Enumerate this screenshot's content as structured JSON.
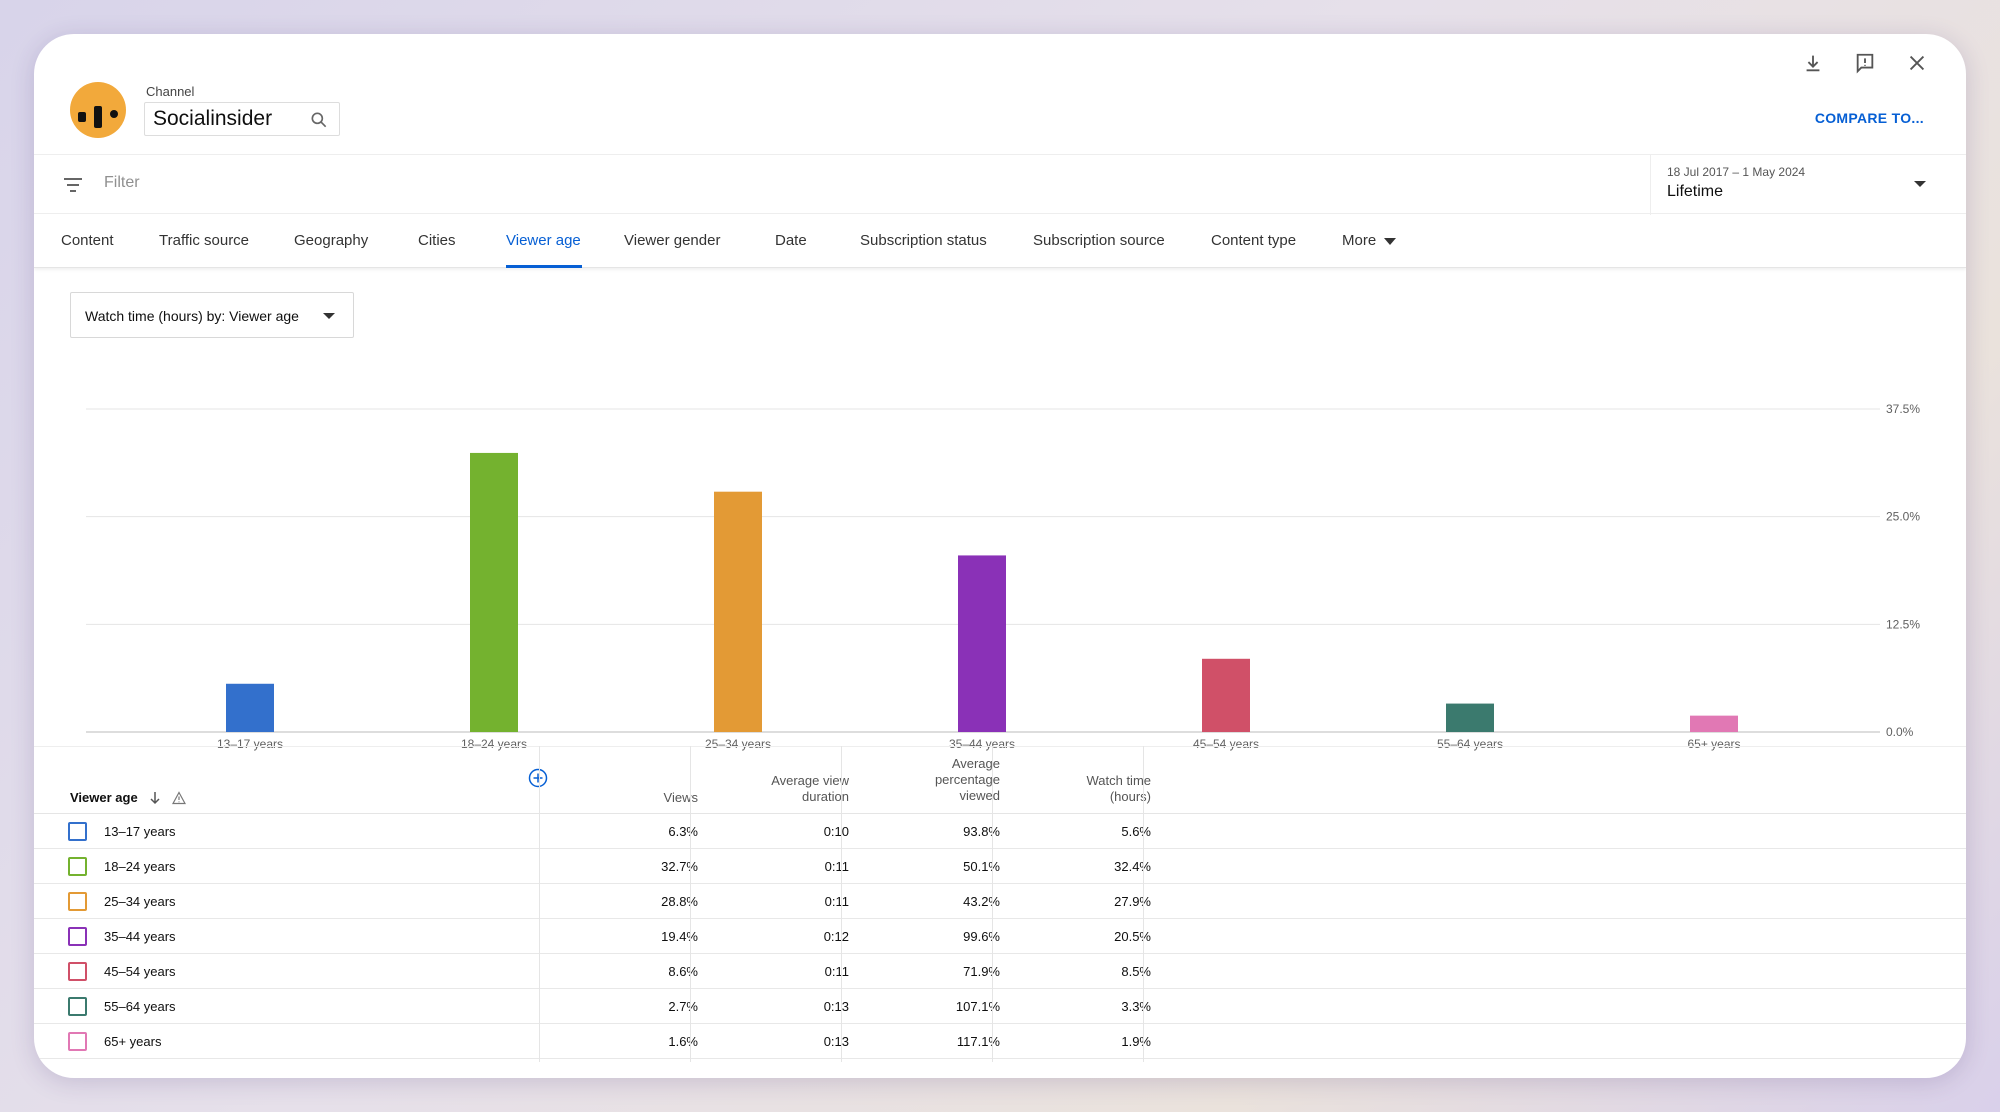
{
  "header": {
    "channel_label": "Channel",
    "channel_name": "Socialinsider",
    "compare_label": "COMPARE TO..."
  },
  "filter": {
    "placeholder": "Filter",
    "date_range": "18 Jul 2017 – 1 May 2024",
    "period": "Lifetime"
  },
  "tabs": [
    "Content",
    "Traffic source",
    "Geography",
    "Cities",
    "Viewer age",
    "Viewer gender",
    "Date",
    "Subscription status",
    "Subscription source",
    "Content type",
    "More"
  ],
  "active_tab": "Viewer age",
  "metric_dropdown": "Watch time (hours) by: Viewer age",
  "chart_data": {
    "type": "bar",
    "categories": [
      "13–17 years",
      "18–24 years",
      "25–34 years",
      "35–44 years",
      "45–54 years",
      "55–64 years",
      "65+ years"
    ],
    "values": [
      5.6,
      32.4,
      27.9,
      20.5,
      8.5,
      3.3,
      1.9
    ],
    "colors": [
      "#3370cc",
      "#74b22f",
      "#e39a35",
      "#8a31b7",
      "#d05068",
      "#3b7a6e",
      "#e178b4"
    ],
    "y_ticks": [
      "37.5%",
      "25.0%",
      "12.5%",
      "0.0%"
    ],
    "ylim": [
      0,
      37.5
    ],
    "ylabel": "",
    "grid": true
  },
  "table": {
    "first_header": "Viewer age",
    "headers": [
      "Views",
      "Average view duration",
      "Average percentage viewed",
      "Watch time (hours)"
    ],
    "rows": [
      {
        "label": "13–17 years",
        "views": "6.3%",
        "avd": "0:10",
        "apv": "93.8%",
        "wt": "5.6%"
      },
      {
        "label": "18–24 years",
        "views": "32.7%",
        "avd": "0:11",
        "apv": "50.1%",
        "wt": "32.4%"
      },
      {
        "label": "25–34 years",
        "views": "28.8%",
        "avd": "0:11",
        "apv": "43.2%",
        "wt": "27.9%"
      },
      {
        "label": "35–44 years",
        "views": "19.4%",
        "avd": "0:12",
        "apv": "99.6%",
        "wt": "20.5%"
      },
      {
        "label": "45–54 years",
        "views": "8.6%",
        "avd": "0:11",
        "apv": "71.9%",
        "wt": "8.5%"
      },
      {
        "label": "55–64 years",
        "views": "2.7%",
        "avd": "0:13",
        "apv": "107.1%",
        "wt": "3.3%"
      },
      {
        "label": "65+ years",
        "views": "1.6%",
        "avd": "0:13",
        "apv": "117.1%",
        "wt": "1.9%"
      }
    ]
  }
}
